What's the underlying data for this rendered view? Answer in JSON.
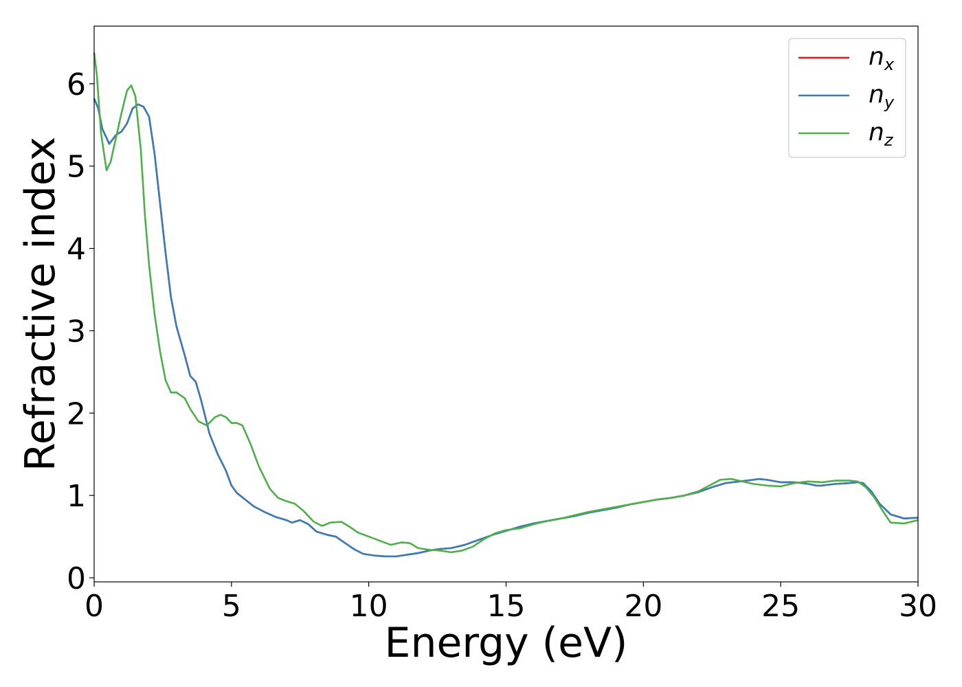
{
  "chart_data": {
    "type": "line",
    "title": "",
    "xlabel": "Energy (eV)",
    "ylabel": "Refractive index",
    "xlim": [
      0,
      30
    ],
    "ylim": [
      -0.05,
      6.7
    ],
    "x_ticks": [
      0,
      5,
      10,
      15,
      20,
      25,
      30
    ],
    "y_ticks": [
      0,
      1,
      2,
      3,
      4,
      5,
      6
    ],
    "grid": false,
    "legend_position": "top-right",
    "series": [
      {
        "name": "n_x",
        "legend_main": "n",
        "legend_sub": "x",
        "color": "#e41a1c",
        "x": [
          0,
          0.15,
          0.3,
          0.55,
          0.8,
          1.0,
          1.2,
          1.4,
          1.6,
          1.8,
          2.0,
          2.2,
          2.4,
          2.6,
          2.8,
          3.0,
          3.3,
          3.5,
          3.7,
          3.9,
          4.2,
          4.5,
          4.8,
          5.0,
          5.2,
          5.5,
          5.8,
          6.2,
          6.6,
          7.0,
          7.2,
          7.5,
          7.8,
          8.1,
          8.5,
          8.8,
          9.1,
          9.5,
          9.8,
          10.2,
          10.6,
          11.0,
          11.4,
          11.8,
          12.2,
          12.6,
          13.0,
          13.5,
          14.0,
          14.5,
          15.0,
          15.5,
          16.0,
          16.5,
          17.0,
          17.5,
          18.0,
          18.5,
          19.0,
          19.5,
          20.0,
          20.5,
          21.0,
          21.5,
          22.0,
          22.5,
          23.0,
          23.5,
          24.0,
          24.2,
          24.5,
          25.0,
          25.5,
          26.0,
          26.3,
          26.5,
          27.0,
          27.5,
          27.8,
          28.0,
          28.3,
          28.6,
          29.0,
          29.5,
          30.0
        ],
        "y": [
          5.82,
          5.7,
          5.45,
          5.27,
          5.38,
          5.42,
          5.52,
          5.7,
          5.75,
          5.72,
          5.6,
          5.15,
          4.55,
          3.95,
          3.4,
          3.05,
          2.7,
          2.45,
          2.38,
          2.15,
          1.75,
          1.5,
          1.3,
          1.12,
          1.03,
          0.95,
          0.87,
          0.8,
          0.74,
          0.7,
          0.67,
          0.7,
          0.65,
          0.56,
          0.52,
          0.5,
          0.43,
          0.34,
          0.29,
          0.27,
          0.26,
          0.26,
          0.28,
          0.3,
          0.33,
          0.35,
          0.36,
          0.4,
          0.46,
          0.52,
          0.57,
          0.62,
          0.66,
          0.69,
          0.72,
          0.75,
          0.79,
          0.82,
          0.85,
          0.89,
          0.92,
          0.95,
          0.97,
          1.0,
          1.04,
          1.1,
          1.15,
          1.17,
          1.19,
          1.2,
          1.19,
          1.16,
          1.16,
          1.14,
          1.12,
          1.12,
          1.14,
          1.15,
          1.16,
          1.15,
          1.05,
          0.9,
          0.77,
          0.72,
          0.73
        ]
      },
      {
        "name": "n_y",
        "legend_main": "n",
        "legend_sub": "y",
        "color": "#377eb8",
        "x": [
          0,
          0.15,
          0.3,
          0.55,
          0.8,
          1.0,
          1.2,
          1.4,
          1.6,
          1.8,
          2.0,
          2.2,
          2.4,
          2.6,
          2.8,
          3.0,
          3.3,
          3.5,
          3.7,
          3.9,
          4.2,
          4.5,
          4.8,
          5.0,
          5.2,
          5.5,
          5.8,
          6.2,
          6.6,
          7.0,
          7.2,
          7.5,
          7.8,
          8.1,
          8.5,
          8.8,
          9.1,
          9.5,
          9.8,
          10.2,
          10.6,
          11.0,
          11.4,
          11.8,
          12.2,
          12.6,
          13.0,
          13.5,
          14.0,
          14.5,
          15.0,
          15.5,
          16.0,
          16.5,
          17.0,
          17.5,
          18.0,
          18.5,
          19.0,
          19.5,
          20.0,
          20.5,
          21.0,
          21.5,
          22.0,
          22.5,
          23.0,
          23.5,
          24.0,
          24.2,
          24.5,
          25.0,
          25.5,
          26.0,
          26.3,
          26.5,
          27.0,
          27.5,
          27.8,
          28.0,
          28.3,
          28.6,
          29.0,
          29.5,
          30.0
        ],
        "y": [
          5.82,
          5.7,
          5.45,
          5.27,
          5.38,
          5.42,
          5.52,
          5.7,
          5.75,
          5.72,
          5.6,
          5.15,
          4.55,
          3.95,
          3.4,
          3.05,
          2.7,
          2.45,
          2.38,
          2.15,
          1.75,
          1.5,
          1.3,
          1.12,
          1.03,
          0.95,
          0.87,
          0.8,
          0.74,
          0.7,
          0.67,
          0.7,
          0.65,
          0.56,
          0.52,
          0.5,
          0.43,
          0.34,
          0.29,
          0.27,
          0.26,
          0.26,
          0.28,
          0.3,
          0.33,
          0.35,
          0.36,
          0.4,
          0.46,
          0.52,
          0.57,
          0.62,
          0.66,
          0.69,
          0.72,
          0.75,
          0.79,
          0.82,
          0.85,
          0.89,
          0.92,
          0.95,
          0.97,
          1.0,
          1.04,
          1.1,
          1.15,
          1.17,
          1.19,
          1.2,
          1.19,
          1.16,
          1.16,
          1.14,
          1.12,
          1.12,
          1.14,
          1.15,
          1.16,
          1.15,
          1.05,
          0.9,
          0.77,
          0.72,
          0.73
        ]
      },
      {
        "name": "n_z",
        "legend_main": "n",
        "legend_sub": "z",
        "color": "#4daf4a",
        "x": [
          0,
          0.1,
          0.25,
          0.45,
          0.6,
          0.8,
          1.0,
          1.2,
          1.35,
          1.5,
          1.7,
          1.85,
          2.0,
          2.2,
          2.4,
          2.6,
          2.8,
          3.0,
          3.3,
          3.5,
          3.8,
          4.1,
          4.4,
          4.6,
          4.8,
          5.0,
          5.2,
          5.4,
          5.7,
          6.0,
          6.4,
          6.7,
          7.0,
          7.3,
          7.6,
          8.0,
          8.3,
          8.6,
          9.0,
          9.3,
          9.6,
          10.0,
          10.4,
          10.8,
          11.2,
          11.5,
          11.8,
          12.2,
          12.6,
          13.0,
          13.4,
          13.8,
          14.2,
          14.6,
          15.0,
          15.5,
          16.0,
          16.5,
          17.0,
          17.5,
          18.0,
          18.5,
          19.0,
          19.5,
          20.0,
          20.5,
          21.0,
          21.5,
          22.0,
          22.4,
          22.8,
          23.2,
          23.6,
          24.0,
          24.5,
          25.0,
          25.5,
          26.0,
          26.5,
          27.0,
          27.5,
          27.8,
          28.1,
          28.4,
          28.7,
          29.0,
          29.5,
          30.0
        ],
        "y": [
          6.38,
          6.1,
          5.4,
          4.95,
          5.05,
          5.35,
          5.65,
          5.92,
          5.98,
          5.85,
          5.2,
          4.4,
          3.8,
          3.2,
          2.75,
          2.4,
          2.25,
          2.25,
          2.18,
          2.05,
          1.9,
          1.85,
          1.95,
          1.98,
          1.95,
          1.88,
          1.88,
          1.85,
          1.62,
          1.35,
          1.08,
          0.97,
          0.93,
          0.9,
          0.82,
          0.68,
          0.63,
          0.67,
          0.68,
          0.62,
          0.55,
          0.5,
          0.45,
          0.4,
          0.43,
          0.42,
          0.36,
          0.34,
          0.33,
          0.31,
          0.33,
          0.38,
          0.47,
          0.54,
          0.58,
          0.6,
          0.65,
          0.69,
          0.72,
          0.76,
          0.8,
          0.83,
          0.86,
          0.89,
          0.92,
          0.95,
          0.97,
          1.0,
          1.05,
          1.12,
          1.19,
          1.2,
          1.17,
          1.14,
          1.12,
          1.11,
          1.15,
          1.17,
          1.16,
          1.18,
          1.18,
          1.17,
          1.1,
          0.98,
          0.82,
          0.67,
          0.66,
          0.7
        ]
      }
    ]
  }
}
